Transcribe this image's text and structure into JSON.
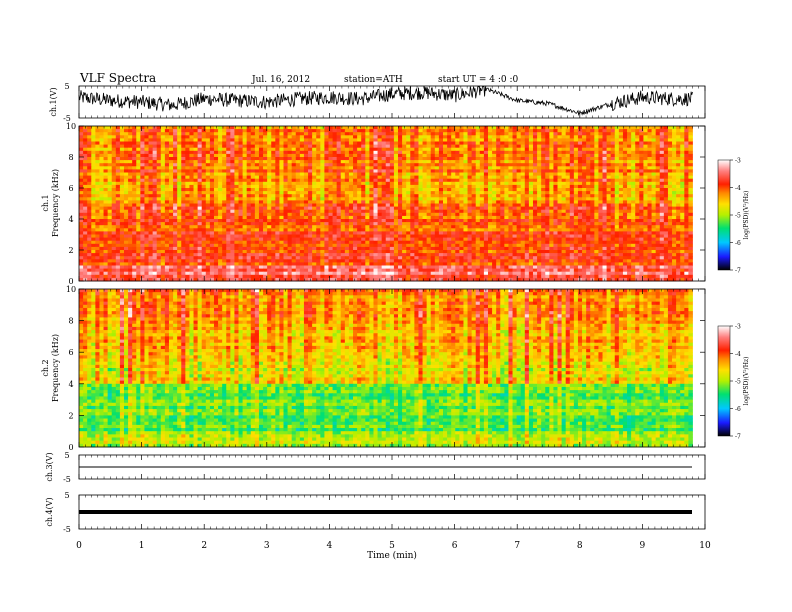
{
  "header": {
    "title": "VLF  Spectra",
    "date": "Jul.  16,  2012",
    "station": "station=ATH",
    "start": "start  UT  =   4  :0  :0"
  },
  "chart_data": [
    {
      "type": "line",
      "title": "VLF  Spectra",
      "ylabel": "ch.1(V)",
      "ylim": [
        -5,
        5
      ],
      "yticks": [
        "5",
        "-5"
      ],
      "description_series": "noisy waveform around 0 V, amplitude up to about ±4 V",
      "x": [
        0,
        0.5,
        1,
        1.5,
        2,
        2.5,
        3,
        3.5,
        4,
        4.5,
        5,
        5.5,
        6,
        6.5,
        7,
        7.5,
        8,
        8.5,
        9,
        9.5,
        9.8
      ],
      "values": [
        1.5,
        0.5,
        0.0,
        -1.0,
        1.0,
        0.5,
        0.0,
        1.0,
        1.5,
        1.0,
        2.5,
        3.0,
        2.0,
        4.0,
        0.5,
        -0.5,
        -3.5,
        -0.5,
        1.5,
        1.0,
        1.0
      ]
    },
    {
      "type": "heatmap",
      "ylabel": "ch.1\nFrequency  (kHz)",
      "ylim": [
        0,
        10
      ],
      "yticks": [
        "0",
        "2",
        "4",
        "6",
        "8",
        "10"
      ],
      "colorbar": {
        "label": "log(PSD)(V²/Hz)",
        "ticks": [
          "-3",
          "-4",
          "-5",
          "-6",
          "-7"
        ],
        "range": [
          -7,
          -3
        ]
      },
      "bands": [
        {
          "from": 0.0,
          "to": 1.0,
          "value": -3.6
        },
        {
          "from": 1.0,
          "to": 2.0,
          "value": -3.9
        },
        {
          "from": 2.0,
          "to": 3.5,
          "value": -4.0
        },
        {
          "from": 3.5,
          "to": 5.2,
          "value": -4.1
        },
        {
          "from": 5.2,
          "to": 7.0,
          "value": -4.3
        },
        {
          "from": 7.0,
          "to": 10.0,
          "value": -4.2
        }
      ]
    },
    {
      "type": "heatmap",
      "ylabel": "ch.2\nFrequency  (kHz)",
      "ylim": [
        0,
        10
      ],
      "yticks": [
        "0",
        "2",
        "4",
        "6",
        "8",
        "10"
      ],
      "colorbar": {
        "label": "log(PSD)(V²/Hz)",
        "ticks": [
          "-3",
          "-4",
          "-5",
          "-6",
          "-7"
        ],
        "range": [
          -7,
          -3
        ]
      },
      "bands": [
        {
          "from": 0.0,
          "to": 1.0,
          "value": -4.9
        },
        {
          "from": 1.0,
          "to": 2.5,
          "value": -5.3
        },
        {
          "from": 2.5,
          "to": 4.0,
          "value": -5.2
        },
        {
          "from": 4.0,
          "to": 6.0,
          "value": -4.7
        },
        {
          "from": 6.0,
          "to": 8.0,
          "value": -4.4
        },
        {
          "from": 8.0,
          "to": 10.0,
          "value": -4.2
        }
      ]
    },
    {
      "type": "line",
      "ylabel": "ch.3(V)",
      "ylim": [
        -5,
        5
      ],
      "yticks": [
        "5",
        "-5"
      ],
      "x": [
        0,
        9.8
      ],
      "values": [
        0,
        0
      ]
    },
    {
      "type": "line",
      "ylabel": "ch.4(V)",
      "ylim": [
        -5,
        5
      ],
      "yticks": [
        "5",
        "-5"
      ],
      "x": [
        0,
        9.8
      ],
      "values": [
        0,
        0
      ]
    }
  ],
  "xaxis": {
    "xlabel": "Time  (min)",
    "xlim": [
      0,
      10
    ],
    "ticks": [
      "0",
      "1",
      "2",
      "3",
      "4",
      "5",
      "6",
      "7",
      "8",
      "9",
      "10"
    ]
  }
}
